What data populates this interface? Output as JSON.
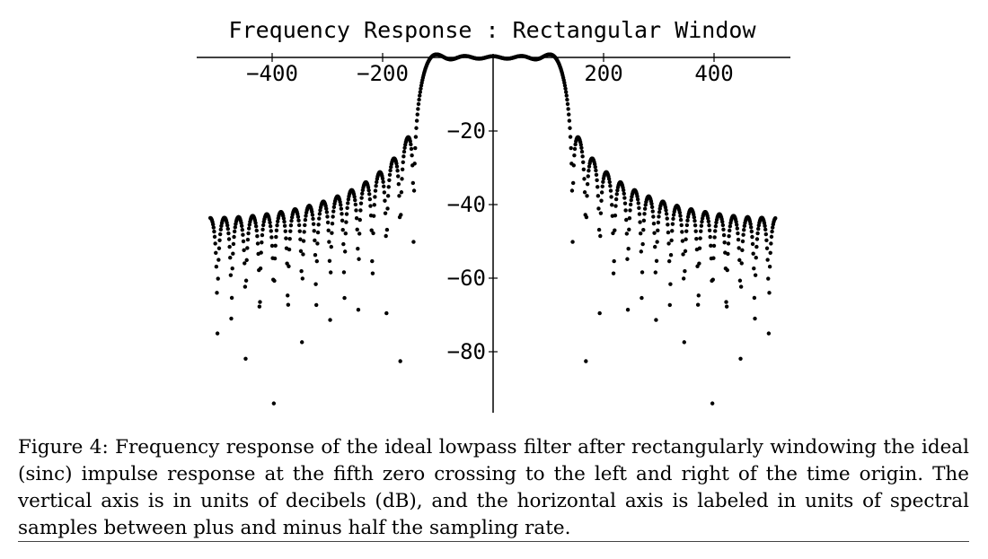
{
  "caption": "Figure 4: Frequency response of the ideal lowpass filter after rectangularly windowing the ideal (sinc) impulse response at the fifth zero crossing to the left and right of the time origin. The vertical axis is in units of decibels (dB), and the horizontal axis is labeled in units of spectral samples between plus and minus half the sampling rate.",
  "chart_data": {
    "type": "scatter",
    "title": "Frequency Response : Rectangular Window",
    "xlabel": "",
    "ylabel": "",
    "xlim": [
      -512,
      512
    ],
    "ylim": [
      -96,
      3
    ],
    "x_ticks": [
      -400,
      -200,
      200,
      400
    ],
    "x_tick_labels": [
      "-400",
      "-200",
      "200",
      "400"
    ],
    "y_ticks": [
      -20,
      -40,
      -60,
      -80
    ],
    "y_tick_labels": [
      "-20",
      "-40",
      "-60",
      "-80"
    ],
    "x_axis_position": "top",
    "grid": false,
    "legend": "none",
    "series": [
      {
        "description": "magnitude response in dB of a sinc impulse response truncated at the fifth zero crossing on each side of the origin, one point per spectral sample",
        "cutoff_sample": 128,
        "window_zero_crossings_each_side": 5,
        "x_start": -512,
        "x_end": 511,
        "x_step": 1,
        "passband_level_db": 0,
        "passband_ripple_db": 1,
        "first_sidelobe_peak_db": -21,
        "edge_sidelobe_peak_db": -44,
        "deepest_sample_db": -94,
        "floor_db": -96
      }
    ]
  }
}
